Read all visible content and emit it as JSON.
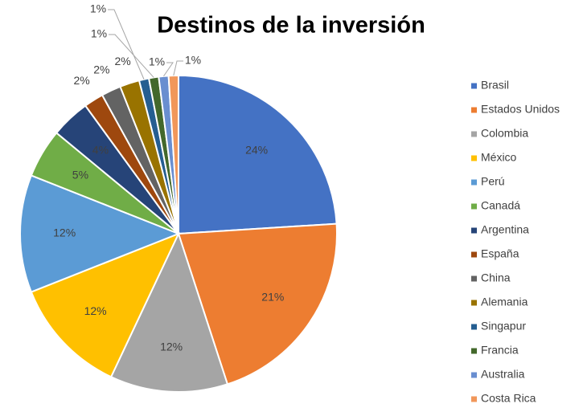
{
  "chart_data": {
    "type": "pie",
    "title": "Destinos de la inversión",
    "categories": [
      "Brasil",
      "Estados Unidos",
      "Colombia",
      "México",
      "Perú",
      "Canadá",
      "Argentina",
      "España",
      "China",
      "Alemania",
      "Singapur",
      "Francia",
      "Australia",
      "Costa Rica"
    ],
    "values": [
      24,
      21,
      12,
      12,
      12,
      5,
      4,
      2,
      2,
      2,
      1,
      1,
      1,
      1
    ],
    "colors": [
      "#4472c4",
      "#ed7d31",
      "#a5a5a5",
      "#ffc000",
      "#5b9bd5",
      "#70ad47",
      "#264478",
      "#9e480e",
      "#636363",
      "#997300",
      "#255e91",
      "#43682b",
      "#698ed0",
      "#f1975a"
    ],
    "legend": "right"
  }
}
